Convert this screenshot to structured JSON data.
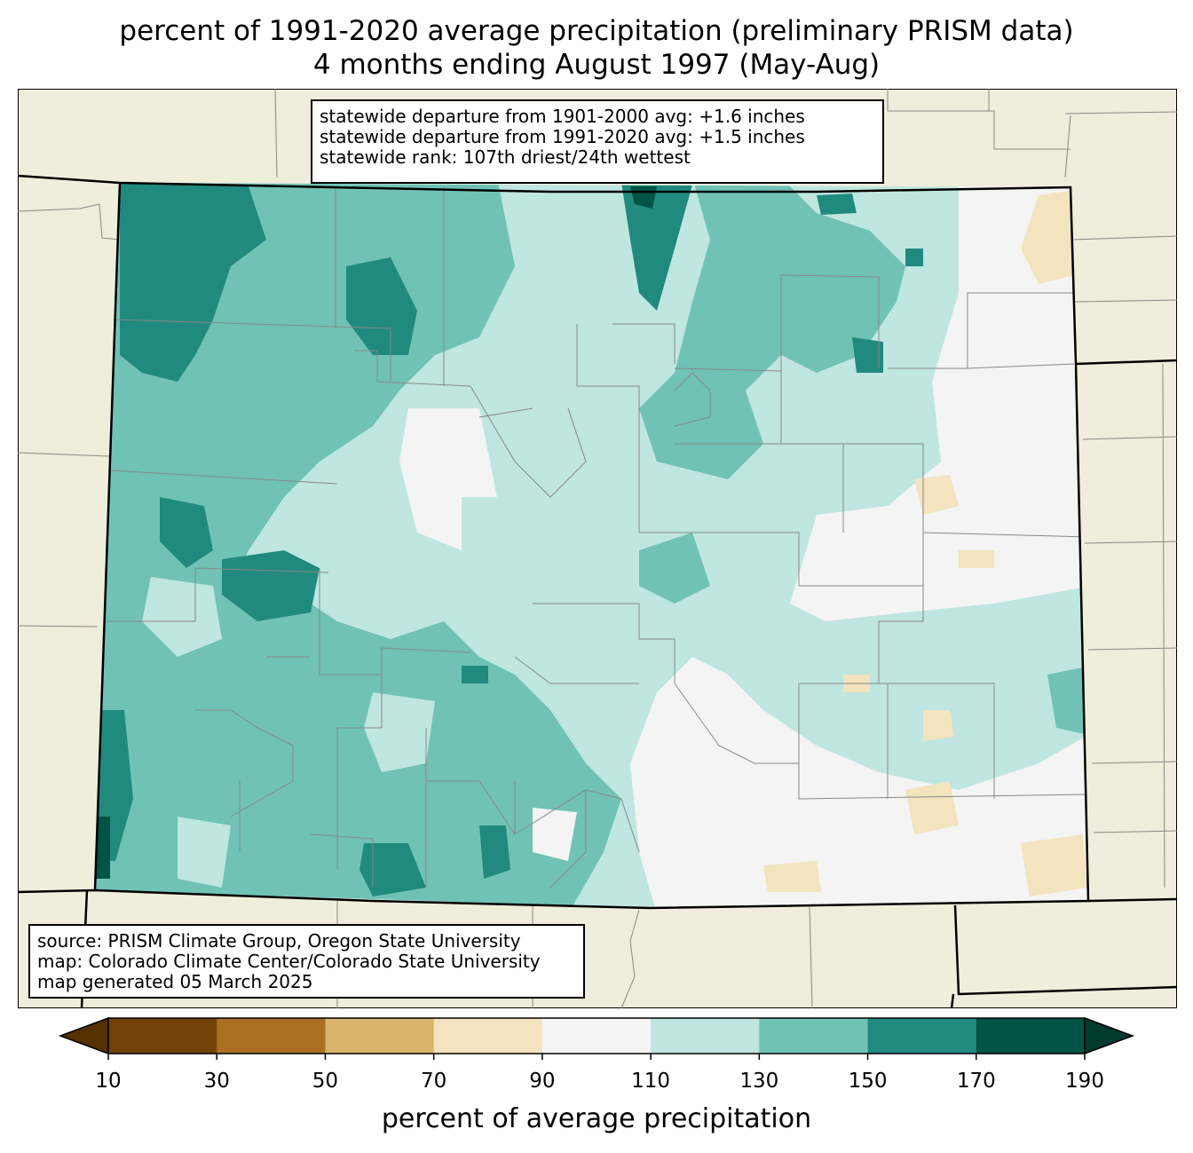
{
  "title": {
    "line1": "percent of 1991-2020 average precipitation (preliminary PRISM data)",
    "line2": "4 months ending August 1997 (May-Aug)"
  },
  "stats_box": {
    "line1": "statewide departure from 1901-2000 avg: +1.6 inches",
    "line2": "statewide departure from 1991-2020 avg: +1.5 inches",
    "line3": "statewide rank: 107th driest/24th wettest"
  },
  "source_box": {
    "line1": "source: PRISM Climate Group, Oregon State University",
    "line2": "map: Colorado Climate Center/Colorado State University",
    "line3": "map generated 05 March 2025"
  },
  "colorbar": {
    "label": "percent of average precipitation",
    "ticks": [
      "10",
      "30",
      "50",
      "70",
      "90",
      "110",
      "130",
      "150",
      "170",
      "190"
    ],
    "bins": [
      {
        "range": "10-30",
        "color": "#744208"
      },
      {
        "range": "30-50",
        "color": "#ab6e23"
      },
      {
        "range": "50-70",
        "color": "#d8b46d"
      },
      {
        "range": "70-90",
        "color": "#f3e3be"
      },
      {
        "range": "90-110",
        "color": "#f3f4f3"
      },
      {
        "range": "110-130",
        "color": "#bfe6e1"
      },
      {
        "range": "130-150",
        "color": "#70c2b5"
      },
      {
        "range": "150-170",
        "color": "#218a7f"
      },
      {
        "range": "170-190",
        "color": "#005345"
      }
    ],
    "under_color": "#553100",
    "over_color": "#00392e"
  },
  "colors": {
    "land_background": "#efeddb",
    "border_county": "#888888",
    "border_state": "#000000"
  }
}
